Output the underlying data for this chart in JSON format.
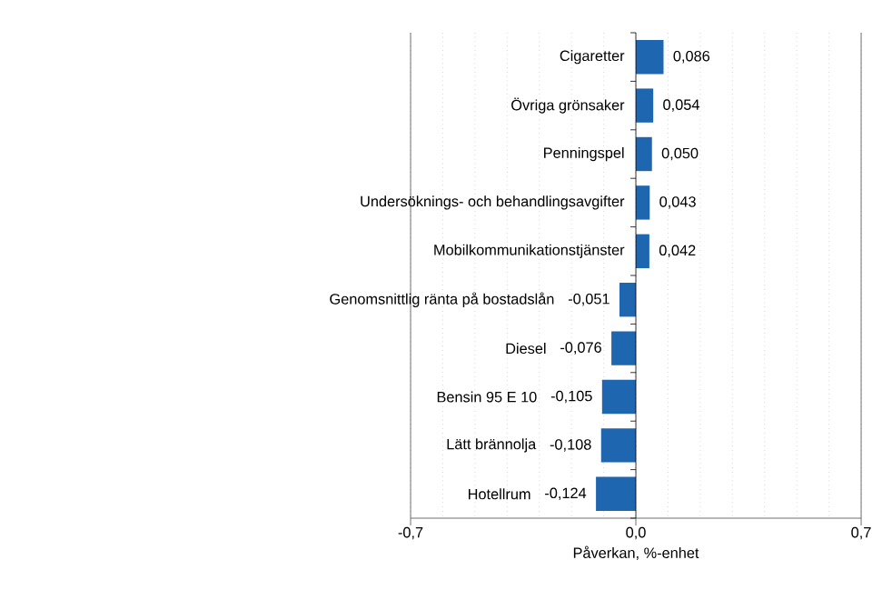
{
  "chart_data": {
    "type": "bar",
    "orientation": "horizontal",
    "xlabel": "Påverkan, %-enhet",
    "categories": [
      "Cigaretter",
      "Övriga grönsaker",
      "Penningspel",
      "Undersöknings- och behandlingsavgifter",
      "Mobilkommunikationstjänster",
      "Genomsnittlig ränta på bostadslån",
      "Diesel",
      "Bensin 95 E 10",
      "Lätt brännolja",
      "Hotellrum"
    ],
    "values": [
      0.086,
      0.054,
      0.05,
      0.043,
      0.042,
      -0.051,
      -0.076,
      -0.105,
      -0.108,
      -0.124
    ],
    "value_labels": [
      "0,086",
      "0,054",
      "0,050",
      "0,043",
      "0,042",
      "-0,051",
      "-0,076",
      "-0,105",
      "-0,108",
      "-0,124"
    ],
    "color": "#1f66b0",
    "xlim": [
      -0.7,
      0.7
    ],
    "xticks": [
      {
        "value": -0.7,
        "label": "-0,7"
      },
      {
        "value": -0.6,
        "label": null
      },
      {
        "value": -0.5,
        "label": null
      },
      {
        "value": -0.4,
        "label": null
      },
      {
        "value": -0.3,
        "label": null
      },
      {
        "value": -0.2,
        "label": null
      },
      {
        "value": -0.1,
        "label": null
      },
      {
        "value": 0.0,
        "label": "0,0"
      },
      {
        "value": 0.1,
        "label": null
      },
      {
        "value": 0.2,
        "label": null
      },
      {
        "value": 0.3,
        "label": null
      },
      {
        "value": 0.4,
        "label": null
      },
      {
        "value": 0.5,
        "label": null
      },
      {
        "value": 0.6,
        "label": null
      },
      {
        "value": 0.7,
        "label": "0,7"
      }
    ],
    "grid": "x"
  }
}
